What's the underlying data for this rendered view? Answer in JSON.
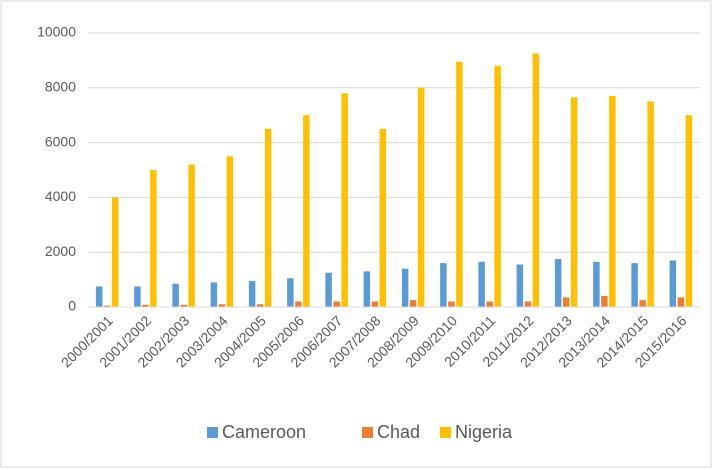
{
  "chart_data": {
    "type": "bar",
    "categories": [
      "2000/2001",
      "2001/2002",
      "2002/2003",
      "2003/2004",
      "2004/2005",
      "2005/2006",
      "2006/2007",
      "2007/2008",
      "2008/2009",
      "2009/2010",
      "2010/2011",
      "2011/2012",
      "2012/2013",
      "2013/2014",
      "2014/2015",
      "2015/2016"
    ],
    "series": [
      {
        "name": "Cameroon",
        "color": "#5b9bd5",
        "values": [
          750,
          750,
          850,
          900,
          950,
          1050,
          1250,
          1300,
          1400,
          1600,
          1650,
          1550,
          1750,
          1650,
          1600,
          1700
        ]
      },
      {
        "name": "Chad",
        "color": "#ed7d31",
        "values": [
          50,
          80,
          80,
          100,
          100,
          200,
          200,
          200,
          250,
          200,
          200,
          200,
          350,
          400,
          250,
          350
        ]
      },
      {
        "name": "Nigeria",
        "color": "#ffc000",
        "values": [
          4000,
          5000,
          5200,
          5500,
          6500,
          7000,
          7800,
          6500,
          8000,
          8950,
          8800,
          9250,
          7650,
          7700,
          7500,
          7000
        ]
      }
    ],
    "ylim": [
      0,
      10000
    ],
    "yticks": [
      0,
      2000,
      4000,
      6000,
      8000,
      10000
    ],
    "grid": true,
    "legend": "bottom"
  }
}
